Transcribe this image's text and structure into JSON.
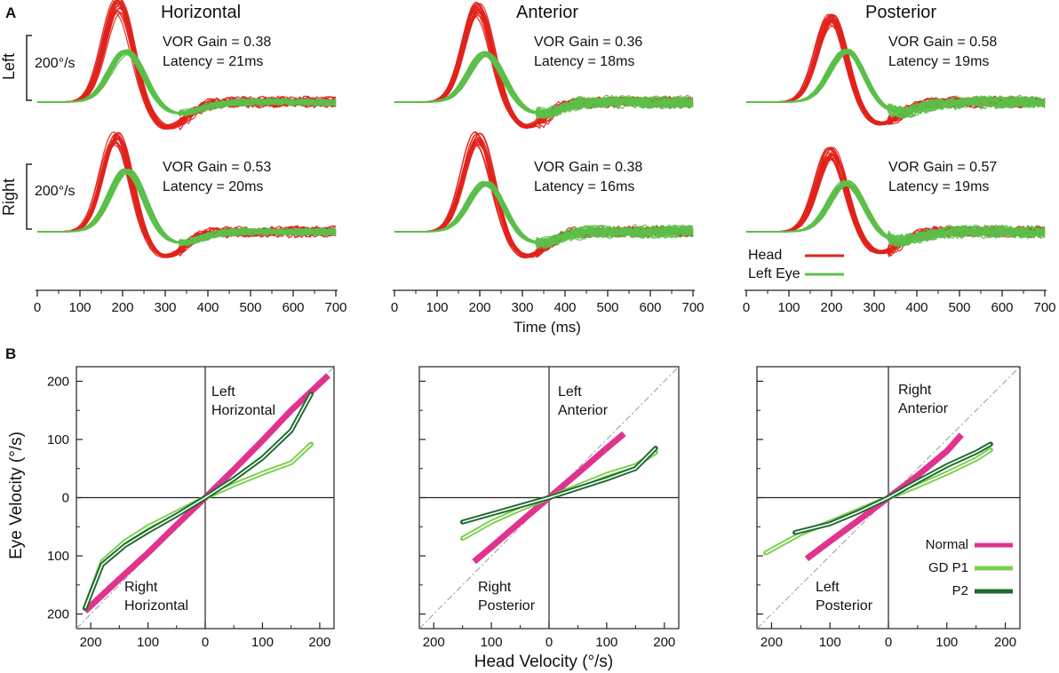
{
  "figure": {
    "panel_a_letter": "A",
    "panel_b_letter": "B",
    "colors": {
      "head": "#e0231b",
      "eye": "#5cbf4a",
      "normal": "#e0338f",
      "gd_p1": "#7ccf4f",
      "p2": "#1e6b2e",
      "axis": "#222222",
      "unity": "#999999"
    }
  },
  "chart_data": [
    {
      "type": "line",
      "panel": "A",
      "description_id": "head-impulse-traces",
      "column_titles": [
        "Horizontal",
        "Anterior",
        "Posterior"
      ],
      "row_labels": [
        "Left",
        "Right"
      ],
      "scale_bar_label": "200°/s",
      "scale_bar_value": 200,
      "xlabel": "Time (ms)",
      "x_ticks": [
        "0",
        "100",
        "200",
        "300",
        "400",
        "500",
        "600",
        "700"
      ],
      "xlim": [
        0,
        700
      ],
      "legend": [
        {
          "name": "Head",
          "color": "#e0231b"
        },
        {
          "name": "Left Eye",
          "color": "#5cbf4a"
        }
      ],
      "panels": [
        {
          "canal": "Horizontal",
          "side": "Left",
          "gain_text": "VOR Gain = 0.38",
          "latency_text": "Latency = 21ms",
          "vor_gain": 0.38,
          "latency_ms": 21,
          "head_peak": 300,
          "head_peak_time": 190,
          "eye_peak_time": 210
        },
        {
          "canal": "Anterior",
          "side": "Left",
          "gain_text": "VOR Gain = 0.36",
          "latency_text": "Latency = 18ms",
          "vor_gain": 0.36,
          "latency_ms": 18,
          "head_peak": 290,
          "head_peak_time": 195,
          "eye_peak_time": 215
        },
        {
          "canal": "Posterior",
          "side": "Left",
          "gain_text": "VOR Gain = 0.58",
          "latency_text": "Latency = 19ms",
          "vor_gain": 0.58,
          "latency_ms": 19,
          "head_peak": 255,
          "head_peak_time": 200,
          "eye_peak_time": 235
        },
        {
          "canal": "Horizontal",
          "side": "Right",
          "gain_text": "VOR Gain = 0.53",
          "latency_text": "Latency = 20ms",
          "vor_gain": 0.53,
          "latency_ms": 20,
          "head_peak": 290,
          "head_peak_time": 185,
          "eye_peak_time": 210
        },
        {
          "canal": "Anterior",
          "side": "Right",
          "gain_text": "VOR Gain = 0.38",
          "latency_text": "Latency  = 16ms",
          "vor_gain": 0.38,
          "latency_ms": 16,
          "head_peak": 290,
          "head_peak_time": 195,
          "eye_peak_time": 215
        },
        {
          "canal": "Posterior",
          "side": "Right",
          "gain_text": "VOR Gain = 0.57",
          "latency_text": "Latency = 19ms",
          "vor_gain": 0.57,
          "latency_ms": 19,
          "head_peak": 245,
          "head_peak_time": 200,
          "eye_peak_time": 235
        }
      ]
    },
    {
      "type": "line",
      "panel": "B",
      "ylabel": "Eye Velocity (°/s)",
      "xlabel": "Head Velocity (°/s)",
      "xlim": [
        -225,
        225
      ],
      "ylim": [
        -225,
        225
      ],
      "tick_values": [
        -200,
        -100,
        0,
        100,
        200
      ],
      "tick_labels": [
        "200",
        "100",
        "0",
        "100",
        "200"
      ],
      "legend": [
        {
          "name": "Normal",
          "color": "#e0338f"
        },
        {
          "name": "GD P1",
          "color": "#7ccf4f"
        },
        {
          "name": "P2",
          "color": "#1e6b2e"
        }
      ],
      "panels": [
        {
          "upper_label": [
            "Left",
            "Horizontal"
          ],
          "lower_label": [
            "Right",
            "Horizontal"
          ],
          "series": [
            {
              "name": "Normal",
              "x": [
                -210,
                -150,
                -100,
                -50,
                0,
                50,
                100,
                150,
                215
              ],
              "y": [
                -195,
                -140,
                -95,
                -47,
                0,
                48,
                98,
                150,
                210
              ]
            },
            {
              "name": "GD P1",
              "x": [
                -210,
                -180,
                -140,
                -100,
                -50,
                0,
                50,
                100,
                150,
                185
              ],
              "y": [
                -190,
                -110,
                -75,
                -50,
                -25,
                0,
                22,
                42,
                60,
                92
              ]
            },
            {
              "name": "P2",
              "x": [
                -210,
                -180,
                -140,
                -100,
                -50,
                0,
                50,
                100,
                150,
                185
              ],
              "y": [
                -190,
                -115,
                -82,
                -58,
                -30,
                0,
                32,
                68,
                115,
                178
              ]
            }
          ]
        },
        {
          "upper_label": [
            "Left",
            "Anterior"
          ],
          "lower_label": [
            "Right",
            "Posterior"
          ],
          "series": [
            {
              "name": "Normal",
              "x": [
                -130,
                -100,
                -50,
                0,
                50,
                100,
                130
              ],
              "y": [
                -110,
                -85,
                -42,
                0,
                42,
                85,
                110
              ]
            },
            {
              "name": "GD P1",
              "x": [
                -150,
                -100,
                -50,
                0,
                50,
                100,
                150,
                185
              ],
              "y": [
                -70,
                -42,
                -20,
                0,
                20,
                40,
                55,
                78
              ]
            },
            {
              "name": "P2",
              "x": [
                -150,
                -100,
                -50,
                0,
                50,
                100,
                150,
                185
              ],
              "y": [
                -42,
                -28,
                -14,
                0,
                16,
                32,
                50,
                85
              ]
            }
          ]
        },
        {
          "upper_label": [
            "Right",
            "Anterior"
          ],
          "lower_label": [
            "Left",
            "Posterior"
          ],
          "series": [
            {
              "name": "Normal",
              "x": [
                -140,
                -100,
                -50,
                0,
                50,
                100,
                125
              ],
              "y": [
                -105,
                -75,
                -38,
                0,
                38,
                80,
                108
              ]
            },
            {
              "name": "GD P1",
              "x": [
                -210,
                -150,
                -100,
                -50,
                0,
                50,
                100,
                150,
                175
              ],
              "y": [
                -95,
                -62,
                -42,
                -21,
                0,
                20,
                42,
                66,
                82
              ]
            },
            {
              "name": "P2",
              "x": [
                -160,
                -100,
                -50,
                0,
                50,
                100,
                150,
                175
              ],
              "y": [
                -60,
                -45,
                -24,
                0,
                28,
                55,
                78,
                92
              ]
            }
          ]
        }
      ]
    }
  ]
}
